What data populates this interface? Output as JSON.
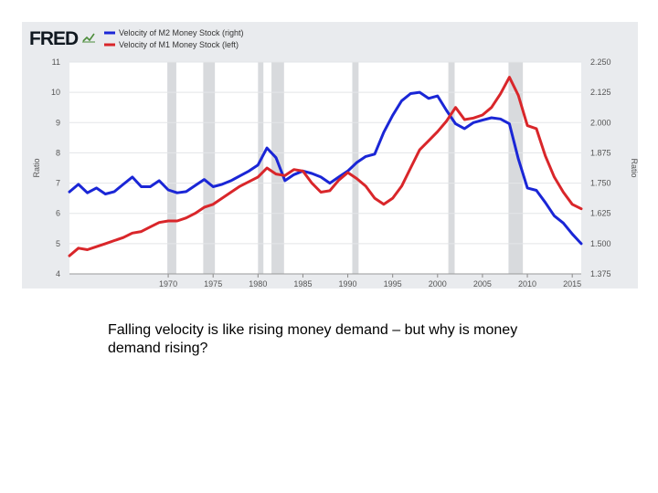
{
  "chart_data": {
    "type": "line",
    "brand": "FRED",
    "series": [
      {
        "name": "Velocity of M2 Money Stock (right)",
        "axis": "right",
        "color": "#1a26d6",
        "points": [
          [
            1959.0,
            1.714
          ],
          [
            1960.0,
            1.745
          ],
          [
            1961.0,
            1.71
          ],
          [
            1962.0,
            1.73
          ],
          [
            1963.0,
            1.705
          ],
          [
            1964.0,
            1.715
          ],
          [
            1965.0,
            1.745
          ],
          [
            1966.0,
            1.775
          ],
          [
            1967.0,
            1.735
          ],
          [
            1968.0,
            1.735
          ],
          [
            1969.0,
            1.76
          ],
          [
            1970.0,
            1.722
          ],
          [
            1971.0,
            1.71
          ],
          [
            1972.0,
            1.715
          ],
          [
            1973.0,
            1.74
          ],
          [
            1974.0,
            1.765
          ],
          [
            1975.0,
            1.735
          ],
          [
            1976.0,
            1.745
          ],
          [
            1977.0,
            1.76
          ],
          [
            1978.0,
            1.78
          ],
          [
            1979.0,
            1.8
          ],
          [
            1980.0,
            1.825
          ],
          [
            1981.0,
            1.895
          ],
          [
            1982.0,
            1.855
          ],
          [
            1983.0,
            1.76
          ],
          [
            1984.0,
            1.785
          ],
          [
            1985.0,
            1.8
          ],
          [
            1986.0,
            1.79
          ],
          [
            1987.0,
            1.775
          ],
          [
            1988.0,
            1.75
          ],
          [
            1989.0,
            1.775
          ],
          [
            1990.0,
            1.8
          ],
          [
            1991.0,
            1.835
          ],
          [
            1992.0,
            1.86
          ],
          [
            1993.0,
            1.87
          ],
          [
            1994.0,
            1.96
          ],
          [
            1995.0,
            2.03
          ],
          [
            1996.0,
            2.09
          ],
          [
            1997.0,
            2.12
          ],
          [
            1998.0,
            2.125
          ],
          [
            1999.0,
            2.1
          ],
          [
            2000.0,
            2.11
          ],
          [
            2001.0,
            2.05
          ],
          [
            2002.0,
            1.995
          ],
          [
            2003.0,
            1.975
          ],
          [
            2004.0,
            2.0
          ],
          [
            2005.0,
            2.01
          ],
          [
            2006.0,
            2.02
          ],
          [
            2007.0,
            2.015
          ],
          [
            2008.0,
            1.995
          ],
          [
            2009.0,
            1.85
          ],
          [
            2010.0,
            1.73
          ],
          [
            2011.0,
            1.72
          ],
          [
            2012.0,
            1.67
          ],
          [
            2013.0,
            1.615
          ],
          [
            2014.0,
            1.585
          ],
          [
            2015.0,
            1.54
          ],
          [
            2016.0,
            1.5
          ]
        ]
      },
      {
        "name": "Velocity of M1 Money Stock (left)",
        "axis": "left",
        "color": "#d9262a",
        "points": [
          [
            1959.0,
            4.6
          ],
          [
            1960.0,
            4.85
          ],
          [
            1961.0,
            4.8
          ],
          [
            1962.0,
            4.9
          ],
          [
            1963.0,
            5.0
          ],
          [
            1964.0,
            5.1
          ],
          [
            1965.0,
            5.2
          ],
          [
            1966.0,
            5.35
          ],
          [
            1967.0,
            5.4
          ],
          [
            1968.0,
            5.55
          ],
          [
            1969.0,
            5.7
          ],
          [
            1970.0,
            5.75
          ],
          [
            1971.0,
            5.75
          ],
          [
            1972.0,
            5.85
          ],
          [
            1973.0,
            6.0
          ],
          [
            1974.0,
            6.2
          ],
          [
            1975.0,
            6.3
          ],
          [
            1976.0,
            6.5
          ],
          [
            1977.0,
            6.7
          ],
          [
            1978.0,
            6.9
          ],
          [
            1979.0,
            7.05
          ],
          [
            1980.0,
            7.2
          ],
          [
            1981.0,
            7.5
          ],
          [
            1982.0,
            7.3
          ],
          [
            1983.0,
            7.25
          ],
          [
            1984.0,
            7.45
          ],
          [
            1985.0,
            7.4
          ],
          [
            1986.0,
            7.0
          ],
          [
            1987.0,
            6.7
          ],
          [
            1988.0,
            6.75
          ],
          [
            1989.0,
            7.1
          ],
          [
            1990.0,
            7.35
          ],
          [
            1991.0,
            7.15
          ],
          [
            1992.0,
            6.9
          ],
          [
            1993.0,
            6.5
          ],
          [
            1994.0,
            6.3
          ],
          [
            1995.0,
            6.5
          ],
          [
            1996.0,
            6.9
          ],
          [
            1997.0,
            7.5
          ],
          [
            1998.0,
            8.1
          ],
          [
            1999.0,
            8.4
          ],
          [
            2000.0,
            8.7
          ],
          [
            2001.0,
            9.05
          ],
          [
            2002.0,
            9.5
          ],
          [
            2003.0,
            9.1
          ],
          [
            2004.0,
            9.15
          ],
          [
            2005.0,
            9.25
          ],
          [
            2006.0,
            9.5
          ],
          [
            2007.0,
            9.95
          ],
          [
            2008.0,
            10.5
          ],
          [
            2009.0,
            9.9
          ],
          [
            2010.0,
            8.9
          ],
          [
            2011.0,
            8.8
          ],
          [
            2012.0,
            7.9
          ],
          [
            2013.0,
            7.2
          ],
          [
            2014.0,
            6.7
          ],
          [
            2015.0,
            6.3
          ],
          [
            2016.0,
            6.15
          ]
        ]
      }
    ],
    "left_axis": {
      "label": "Ratio",
      "ticks": [
        "4",
        "5",
        "6",
        "7",
        "8",
        "9",
        "10",
        "11"
      ],
      "range": [
        4,
        11
      ]
    },
    "right_axis": {
      "label": "Ratio",
      "ticks": [
        "1.375",
        "1.500",
        "1.625",
        "1.750",
        "1.875",
        "2.000",
        "2.125",
        "2.250"
      ],
      "range": [
        1.375,
        2.25
      ]
    },
    "x_axis": {
      "ticks": [
        "1970",
        "1975",
        "1980",
        "1985",
        "1990",
        "1995",
        "2000",
        "2005",
        "2010",
        "2015"
      ],
      "range": [
        1959,
        2016
      ]
    },
    "recessions": [
      [
        1969.9,
        1970.9
      ],
      [
        1973.9,
        1975.2
      ],
      [
        1980.0,
        1980.6
      ],
      [
        1981.5,
        1982.9
      ],
      [
        1990.5,
        1991.2
      ],
      [
        2001.2,
        2001.9
      ],
      [
        2007.9,
        2009.5
      ]
    ],
    "recession_color": "#d8dadd",
    "grid": true
  },
  "caption": "Falling velocity is like rising money demand – but why is money demand rising?"
}
